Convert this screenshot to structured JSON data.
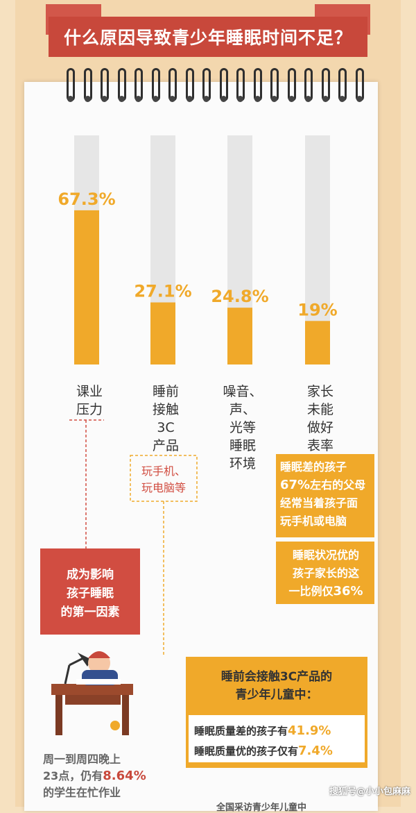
{
  "title": "什么原因导致青少年睡眠时间不足？",
  "chart_data": {
    "type": "bar",
    "categories": [
      [
        "课业",
        "压力"
      ],
      [
        "睡前",
        "接触",
        "3C",
        "产品"
      ],
      [
        "噪音、",
        "声、",
        "光等",
        "睡眠",
        "环境"
      ],
      [
        "家长",
        "未能",
        "做好",
        "表率"
      ]
    ],
    "values": [
      67.3,
      27.1,
      24.8,
      19
    ],
    "value_labels": [
      "67.3%",
      "27.1%",
      "24.8%",
      "19%"
    ],
    "ylim": [
      0,
      100
    ],
    "colors": {
      "bar": "#f0a92a",
      "track": "#e6e6e6",
      "value": "#f0a92a"
    }
  },
  "notes": {
    "screen_note": [
      "玩手机、",
      "玩电脑等"
    ],
    "parents_title": "睡眠差的孩子",
    "parents_line1_pct": "67%",
    "parents_line1_rest": "左右的父母",
    "parents_line2": "经常当着孩子面",
    "parents_line3": "玩手机或电脑",
    "good_line1": "睡眠状况优的",
    "good_line2": "孩子家长的这",
    "good_line3_text": "一比例仅",
    "good_line3_pct": "36%",
    "first_factor": [
      "成为影响",
      "孩子睡眠",
      "的第一因素"
    ],
    "homework_line1": "周一到周四晚上",
    "homework_line2_text": "23点，仍有",
    "homework_line2_pct": "8.64%",
    "homework_line3": "的学生在忙作业",
    "screen_box_title": [
      "睡前会接触3C产品的",
      "青少年儿童中："
    ],
    "screen_box_poor_text": "睡眠质量差的孩子有",
    "screen_box_poor_pct": "41.9%",
    "screen_box_good_text": "睡眠质量优的孩子仅有",
    "screen_box_good_pct": "7.4%",
    "bottom_cut": "全国采访青少年儿童中",
    "watermark": "搜狐号@小小包麻麻"
  }
}
